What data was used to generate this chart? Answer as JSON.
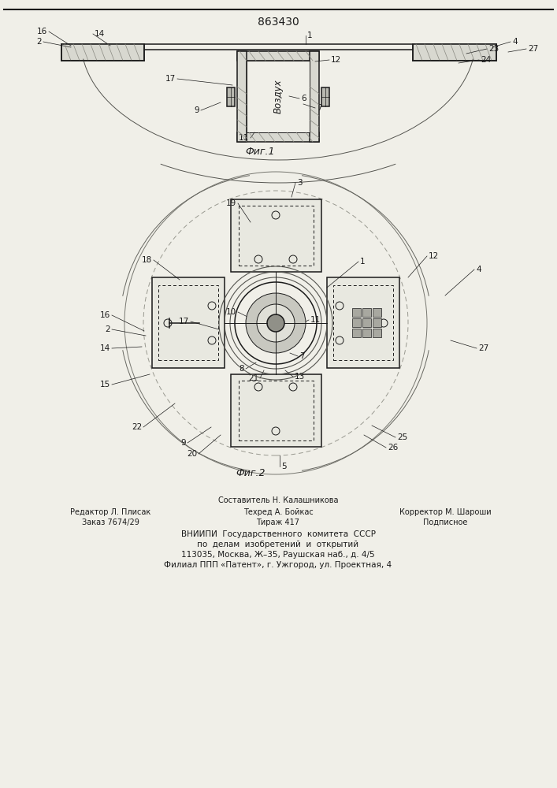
{
  "title": "863430",
  "fig1_label": "Фиг.1",
  "fig2_label": "Фиг.2",
  "bg_color": "#f0efe8",
  "line_color": "#1a1a1a",
  "footer_texts": [
    [
      353,
      365,
      "Составитель Н. Калашникова",
      7
    ],
    [
      140,
      350,
      "Редактор Л. Плисак",
      7
    ],
    [
      353,
      350,
      "Техред А. Бойкас",
      7
    ],
    [
      565,
      350,
      "Корректор М. Шароши",
      7
    ],
    [
      140,
      337,
      "Заказ 7674/29",
      7
    ],
    [
      353,
      337,
      "Тираж 417",
      7
    ],
    [
      565,
      337,
      "Подписное",
      7
    ],
    [
      353,
      322,
      "ВНИИПИ  Государственного  комитета  СССР",
      7.5
    ],
    [
      353,
      309,
      "по  делам  изобретений  и  открытий",
      7.5
    ],
    [
      353,
      296,
      "113035, Москва, Ж–35, Раушская наб., д. 4/5",
      7.5
    ],
    [
      353,
      283,
      "Филиал ППП «Патент», г. Ужгород, ул. Проектная, 4",
      7.5
    ]
  ]
}
